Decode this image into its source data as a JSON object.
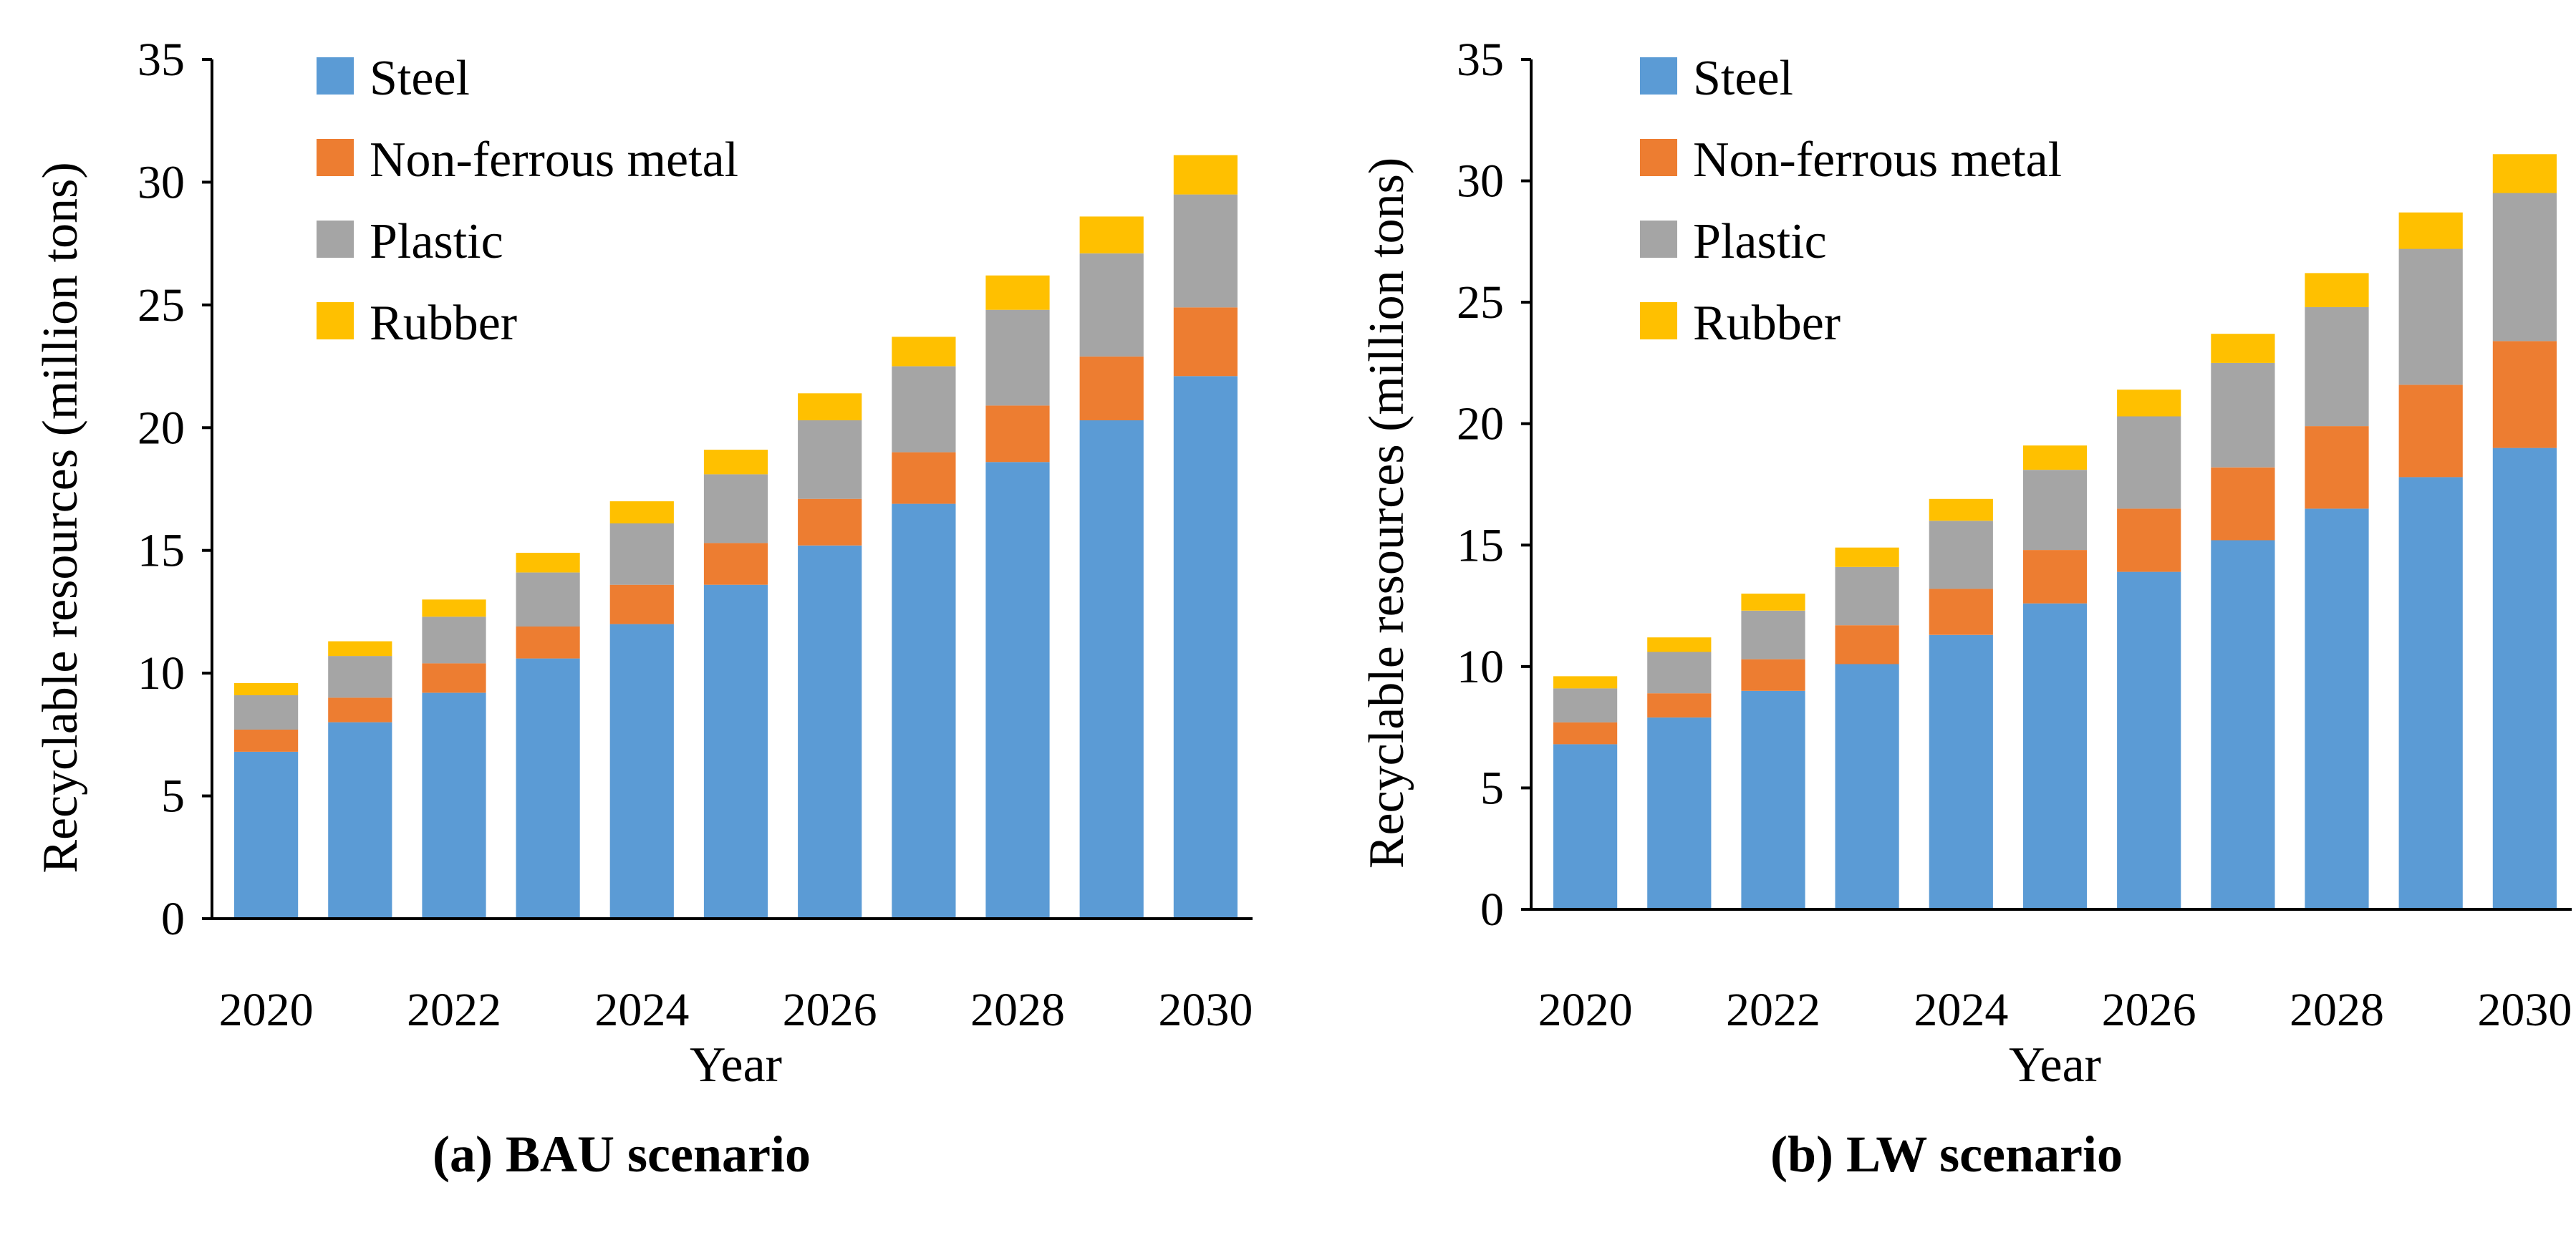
{
  "colors": {
    "steel": "#5B9BD5",
    "non_ferrous_metal": "#ED7D31",
    "plastic": "#A5A5A5",
    "rubber": "#FFC000",
    "axis": "#000000",
    "background": "#FFFFFF"
  },
  "chart_data": [
    {
      "type": "bar",
      "stacked": true,
      "caption": "(a) BAU scenario",
      "xlabel": "Year",
      "ylabel": "Recyclable resources (million tons)",
      "categories": [
        "2020",
        "2021",
        "2022",
        "2023",
        "2024",
        "2025",
        "2026",
        "2027",
        "2028",
        "2029",
        "2030"
      ],
      "x_tick_labels": [
        "2020",
        "2022",
        "2024",
        "2026",
        "2028",
        "2030"
      ],
      "ylim": [
        0,
        35
      ],
      "y_ticks": [
        "0",
        "5",
        "10",
        "15",
        "20",
        "25",
        "30",
        "35"
      ],
      "legend_position": "top-left",
      "grid": false,
      "series": [
        {
          "key": "steel",
          "name": "Steel",
          "values": [
            6.8,
            8.0,
            9.2,
            10.6,
            12.0,
            13.6,
            15.2,
            16.9,
            18.6,
            20.3,
            22.1
          ]
        },
        {
          "key": "non_ferrous_metal",
          "name": "Non-ferrous metal",
          "values": [
            0.9,
            1.0,
            1.2,
            1.3,
            1.6,
            1.7,
            1.9,
            2.1,
            2.3,
            2.6,
            2.8
          ]
        },
        {
          "key": "plastic",
          "name": "Plastic",
          "values": [
            1.4,
            1.7,
            1.9,
            2.2,
            2.5,
            2.8,
            3.2,
            3.5,
            3.9,
            4.2,
            4.6
          ]
        },
        {
          "key": "rubber",
          "name": "Rubber",
          "values": [
            0.5,
            0.6,
            0.7,
            0.8,
            0.9,
            1.0,
            1.1,
            1.2,
            1.4,
            1.5,
            1.6
          ]
        }
      ]
    },
    {
      "type": "bar",
      "stacked": true,
      "caption": "(b) LW scenario",
      "xlabel": "Year",
      "ylabel": "Recyclable resources (million tons)",
      "categories": [
        "2020",
        "2021",
        "2022",
        "2023",
        "2024",
        "2025",
        "2026",
        "2027",
        "2028",
        "2029",
        "2030"
      ],
      "x_tick_labels": [
        "2020",
        "2022",
        "2024",
        "2026",
        "2028",
        "2030"
      ],
      "ylim": [
        0,
        35
      ],
      "y_ticks": [
        "0",
        "5",
        "10",
        "15",
        "20",
        "25",
        "30",
        "35"
      ],
      "legend_position": "top-left",
      "grid": false,
      "series": [
        {
          "key": "steel",
          "name": "Steel",
          "values": [
            6.8,
            7.9,
            9.0,
            10.1,
            11.3,
            12.6,
            13.9,
            15.2,
            16.5,
            17.8,
            19.0
          ]
        },
        {
          "key": "non_ferrous_metal",
          "name": "Non-ferrous metal",
          "values": [
            0.9,
            1.0,
            1.3,
            1.6,
            1.9,
            2.2,
            2.6,
            3.0,
            3.4,
            3.8,
            4.4
          ]
        },
        {
          "key": "plastic",
          "name": "Plastic",
          "values": [
            1.4,
            1.7,
            2.0,
            2.4,
            2.8,
            3.3,
            3.8,
            4.3,
            4.9,
            5.6,
            6.1
          ]
        },
        {
          "key": "rubber",
          "name": "Rubber",
          "values": [
            0.5,
            0.6,
            0.7,
            0.8,
            0.9,
            1.0,
            1.1,
            1.2,
            1.4,
            1.5,
            1.6
          ]
        }
      ]
    }
  ]
}
